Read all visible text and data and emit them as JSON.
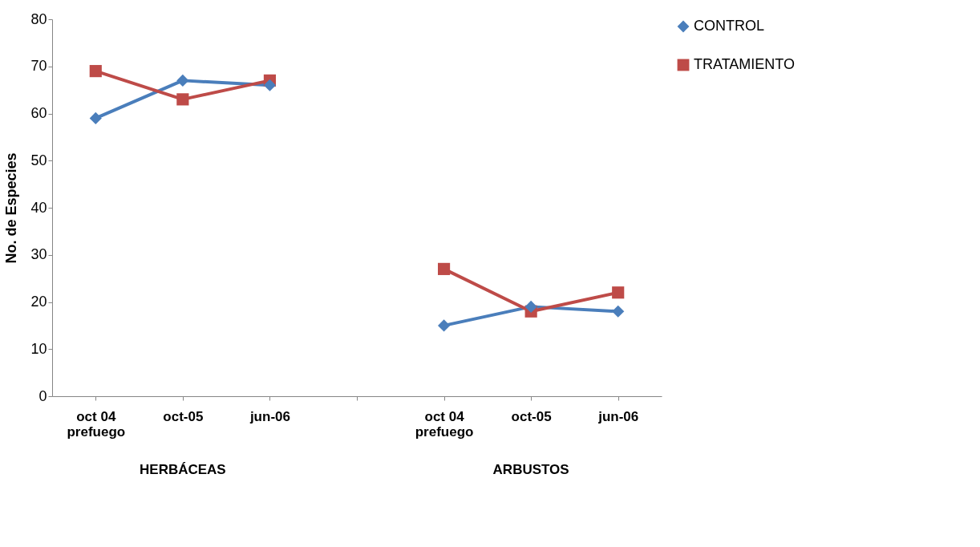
{
  "chart_data": {
    "type": "line",
    "ylabel": "No. de Especies",
    "categories": [
      "oct 04 prefuego",
      "oct-05",
      "jun-06",
      null,
      "oct 04 prefuego",
      "oct-05",
      "jun-06"
    ],
    "series": [
      {
        "name": "CONTROL",
        "color": "#4a7ebb",
        "marker": "diamond",
        "values": [
          59,
          67,
          66,
          null,
          15,
          19,
          18
        ]
      },
      {
        "name": "TRATAMIENTO",
        "color": "#be4b48",
        "marker": "square",
        "values": [
          69,
          63,
          67,
          null,
          27,
          18,
          22
        ]
      }
    ],
    "ylim": [
      0,
      80
    ],
    "yticks": [
      0,
      10,
      20,
      30,
      40,
      50,
      60,
      70,
      80
    ],
    "grid": false,
    "legend": "right",
    "annotations": [
      "HERBÁCEAS",
      "ARBUSTOS"
    ]
  }
}
